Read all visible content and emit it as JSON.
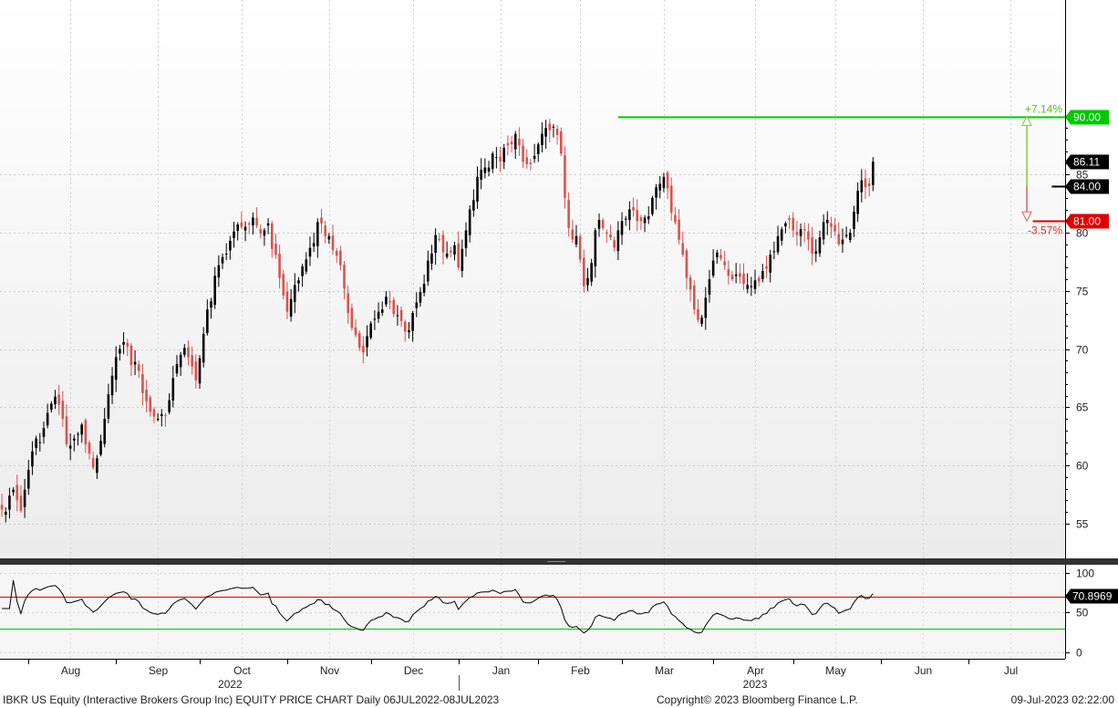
{
  "chart_data": [
    {
      "type": "candlestick",
      "ylim": [
        52,
        100
      ],
      "yticks": [
        55,
        60,
        65,
        70,
        75,
        80,
        85
      ],
      "xlim": [
        0,
        280
      ],
      "months": [
        {
          "label": "Aug",
          "pos": 18
        },
        {
          "label": "Sep",
          "pos": 41
        },
        {
          "label": "Oct",
          "pos": 63
        },
        {
          "label": "Nov",
          "pos": 86
        },
        {
          "label": "Dec",
          "pos": 108
        },
        {
          "label": "Jan",
          "pos": 131
        },
        {
          "label": "Feb",
          "pos": 152
        },
        {
          "label": "Mar",
          "pos": 174
        },
        {
          "label": "Apr",
          "pos": 198
        },
        {
          "label": "May",
          "pos": 219
        },
        {
          "label": "Jun",
          "pos": 242
        },
        {
          "label": "Jul",
          "pos": 265
        }
      ],
      "years": [
        {
          "label": "2022",
          "pos": 60
        },
        {
          "label": "2023",
          "pos": 198
        }
      ],
      "year_divider_pos": 120,
      "closes": [
        56.2,
        56.0,
        57.4,
        57.9,
        57.0,
        56.1,
        57.9,
        59.6,
        61.2,
        62.3,
        62.0,
        63.2,
        64.5,
        65.3,
        65.9,
        65.2,
        64.0,
        61.8,
        61.7,
        62.3,
        62.7,
        63.5,
        61.8,
        61.0,
        59.8,
        60.6,
        62.1,
        64.0,
        66.1,
        67.7,
        69.3,
        70.0,
        70.6,
        70.2,
        68.6,
        68.9,
        68.1,
        66.2,
        65.5,
        64.6,
        64.2,
        64.0,
        64.4,
        64.3,
        65.6,
        67.5,
        68.7,
        69.5,
        70.1,
        69.3,
        68.5,
        67.3,
        69.2,
        71.3,
        73.4,
        74.1,
        76.3,
        77.2,
        77.9,
        78.2,
        79.3,
        80.1,
        80.7,
        80.5,
        80.5,
        80.7,
        81.3,
        80.6,
        79.9,
        80.2,
        80.8,
        78.6,
        78.1,
        76.1,
        74.6,
        73.2,
        74.3,
        75.5,
        75.9,
        77.1,
        77.7,
        78.7,
        79.1,
        80.9,
        80.8,
        79.7,
        79.7,
        78.5,
        78.0,
        77.2,
        75.2,
        73.1,
        71.8,
        71.2,
        70.1,
        69.7,
        71.1,
        72.2,
        72.6,
        73.2,
        73.4,
        74.5,
        74.0,
        73.0,
        72.9,
        72.4,
        71.5,
        71.6,
        73.1,
        74.0,
        74.9,
        75.6,
        77.6,
        78.2,
        79.8,
        79.4,
        78.3,
        78.2,
        78.3,
        78.9,
        77.0,
        78.6,
        80.2,
        82.0,
        82.8,
        84.8,
        85.4,
        85.6,
        85.6,
        86.8,
        86.5,
        86.1,
        87.3,
        87.5,
        87.6,
        88.5,
        87.5,
        86.1,
        85.9,
        85.9,
        86.6,
        87.6,
        88.5,
        89.0,
        88.8,
        89.1,
        88.4,
        86.8,
        83.0,
        80.4,
        79.4,
        79.7,
        77.7,
        75.4,
        76.1,
        77.4,
        80.2,
        81.1,
        80.4,
        79.9,
        79.6,
        78.7,
        80.2,
        81.0,
        81.2,
        82.0,
        81.9,
        81.0,
        81.0,
        81.3,
        81.4,
        83.0,
        83.9,
        84.2,
        84.8,
        83.8,
        81.7,
        80.9,
        79.4,
        78.1,
        76.1,
        75.1,
        73.4,
        72.5,
        72.7,
        74.4,
        76.0,
        77.6,
        78.3,
        77.8,
        77.2,
        76.3,
        76.0,
        76.4,
        76.2,
        75.6,
        75.5,
        75.4,
        75.9,
        75.8,
        76.7,
        76.9,
        78.1,
        78.4,
        79.7,
        80.3,
        80.8,
        81.1,
        80.2,
        79.8,
        80.3,
        80.2,
        79.4,
        78.2,
        78.4,
        79.6,
        80.9,
        81.1,
        80.5,
        80.1,
        79.0,
        79.4,
        79.8,
        80.0,
        81.8,
        83.6,
        84.5,
        83.9,
        84.0,
        86.1
      ],
      "levels": [
        {
          "label": "90.00",
          "value": 90.0,
          "color": "#00c800"
        },
        {
          "label": "84.00",
          "value": 84.0,
          "color": "#000000"
        },
        {
          "label": "81.00",
          "value": 81.0,
          "color": "#e00000"
        }
      ],
      "last_price": {
        "label": "86.11",
        "value": 86.11
      },
      "upside_label": "+7.14%",
      "downside_label": "-3.57%",
      "up_color": "#000000",
      "down_color": "#d9534f"
    },
    {
      "type": "line",
      "ylim": [
        -8,
        110
      ],
      "yticks": [
        0,
        50,
        100
      ],
      "overbought": 70,
      "oversold": 30,
      "last_value": {
        "label": "70.8969",
        "value": 70.9
      },
      "overbought_color": "#e00000",
      "oversold_color": "#00c800",
      "line_color": "#000000"
    }
  ],
  "footer": {
    "left": "IBKR US Equity (Interactive Brokers Group Inc) EQUITY PRICE CHART  Daily 06JUL2022-08JUL2023",
    "center": "Copyright© 2023 Bloomberg Finance L.P.",
    "right": "09-Jul-2023 02:22:00"
  }
}
